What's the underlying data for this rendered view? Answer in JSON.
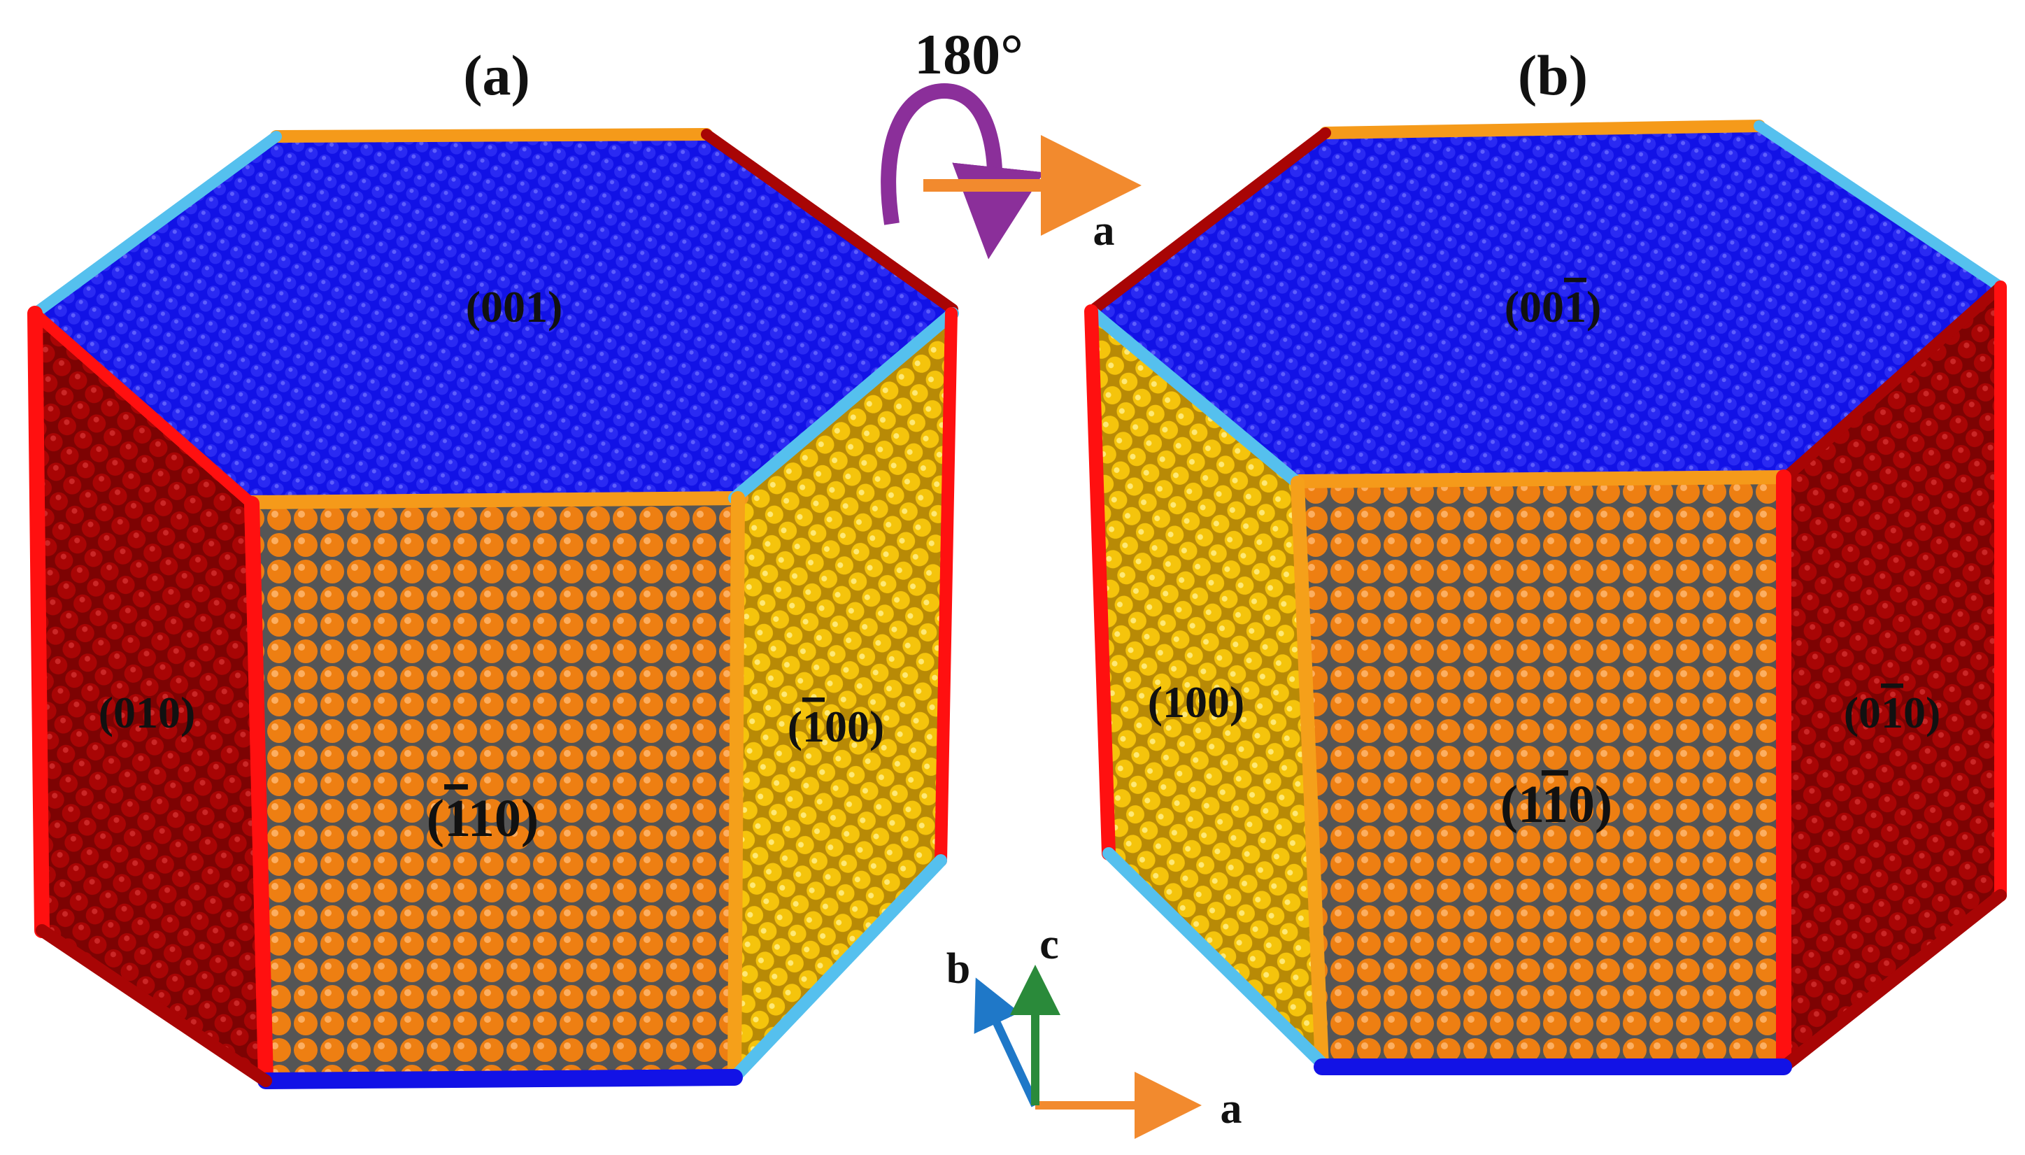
{
  "panels": {
    "a": {
      "label": "(a)",
      "faces": {
        "top": "(001)",
        "left": "(010)",
        "front": {
          "prefix": "(",
          "bar": "1",
          "rest": "10)"
        },
        "right": {
          "prefix": "(",
          "bar": "1",
          "rest": "00)"
        }
      }
    },
    "b": {
      "label": "(b)",
      "faces": {
        "top": {
          "prefix": "(00",
          "bar": "1",
          "rest": ")"
        },
        "left": "(100)",
        "front": {
          "prefix": "(1",
          "bar": "1",
          "rest": "0)"
        },
        "right": {
          "prefix": "(0",
          "bar": "1",
          "rest": "0)"
        }
      }
    }
  },
  "rotation": {
    "angle_label": "180°",
    "axis_label": "a"
  },
  "axes": {
    "a": "a",
    "b": "b",
    "c": "c"
  },
  "colors": {
    "top": "#1212e6",
    "front": "#ee7f12",
    "side_dark": "#a80505",
    "side_yellow": "#f5c40c",
    "edge_red": "#ff1010",
    "edge_cyan": "#55c0ee",
    "edge_orange": "#f59a1a",
    "rotation_arc": "#8b2f9a",
    "arrow_orange": "#f28a2e",
    "axis_blue": "#1f78c8",
    "axis_green": "#2a8a3a"
  }
}
